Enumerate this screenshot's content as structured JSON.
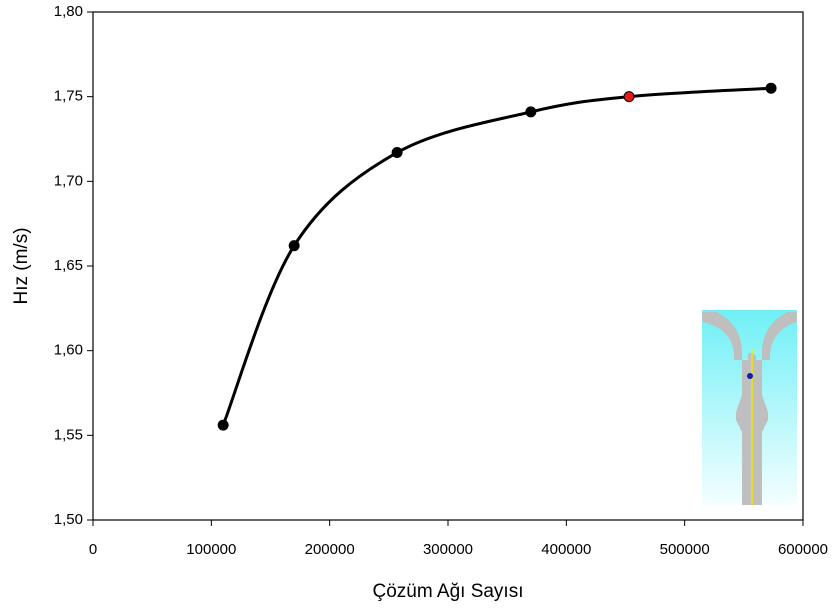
{
  "chart_data": {
    "type": "line",
    "xlabel": "Çözüm Ağı Sayısı",
    "ylabel": "Hız (m/s)",
    "xlim": [
      0,
      600000
    ],
    "ylim": [
      1.5,
      1.8
    ],
    "xticks": [
      0,
      100000,
      200000,
      300000,
      400000,
      500000,
      600000
    ],
    "yticks": [
      {
        "value": 1.5,
        "label": "1,50"
      },
      {
        "value": 1.55,
        "label": "1,55"
      },
      {
        "value": 1.6,
        "label": "1,60"
      },
      {
        "value": 1.65,
        "label": "1,65"
      },
      {
        "value": 1.7,
        "label": "1,70"
      },
      {
        "value": 1.75,
        "label": "1,75"
      },
      {
        "value": 1.8,
        "label": "1,80"
      }
    ],
    "series": [
      {
        "color": "#000000",
        "x": [
          110000,
          170000,
          257000,
          370000,
          453000,
          573000
        ],
        "values": [
          1.556,
          1.662,
          1.717,
          1.741,
          1.75,
          1.755
        ],
        "marker_colors": [
          "#000000",
          "#000000",
          "#000000",
          "#000000",
          "#e31a1c",
          "#000000"
        ]
      }
    ]
  }
}
